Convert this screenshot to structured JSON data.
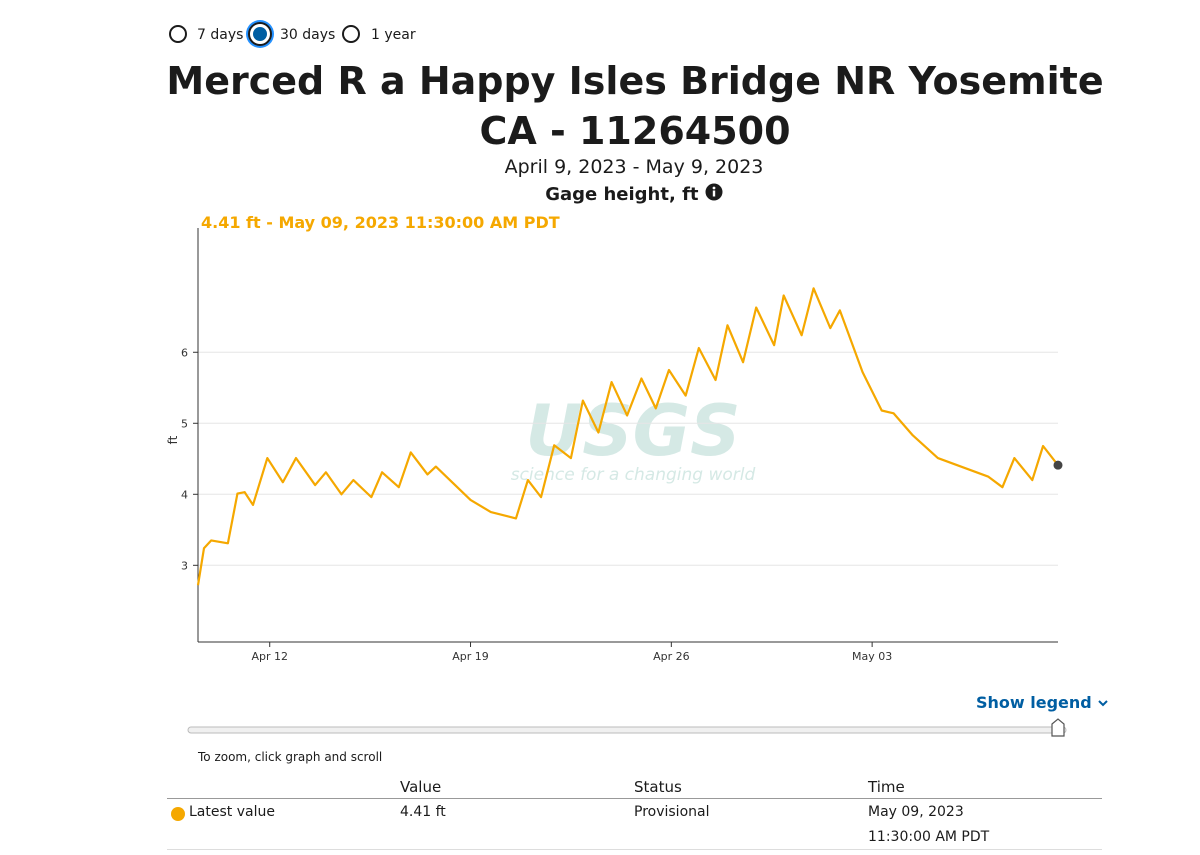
{
  "controls": {
    "periods": [
      "7 days",
      "30 days",
      "1 year"
    ],
    "selected": 1
  },
  "header": {
    "title": "Merced R a Happy Isles Bridge NR Yosemite CA - 11264500",
    "period": "April 9, 2023 - May 9, 2023",
    "parameter": "Gage height, ft"
  },
  "chart_data": {
    "type": "line",
    "annotation": "4.41 ft - May 09, 2023 11:30:00 AM PDT",
    "y_label": "ft",
    "watermark": {
      "logo": "USGS",
      "tagline": "science for a changing world"
    },
    "x": [
      "2023-04-09T12:00",
      "2023-04-09T17:00",
      "2023-04-09T23:00",
      "2023-04-10T13:00",
      "2023-04-10T21:00",
      "2023-04-11T03:00",
      "2023-04-11T10:00",
      "2023-04-11T22:00",
      "2023-04-12T11:00",
      "2023-04-12T22:00",
      "2023-04-13T14:00",
      "2023-04-13T23:00",
      "2023-04-14T12:00",
      "2023-04-14T22:00",
      "2023-04-15T13:00",
      "2023-04-15T22:00",
      "2023-04-16T12:00",
      "2023-04-16T22:00",
      "2023-04-17T12:00",
      "2023-04-17T19:00",
      "2023-04-19T00:00",
      "2023-04-19T17:00",
      "2023-04-20T14:00",
      "2023-04-21T00:00",
      "2023-04-21T11:00",
      "2023-04-21T22:00",
      "2023-04-22T12:00",
      "2023-04-22T22:00",
      "2023-04-23T11:00",
      "2023-04-23T22:00",
      "2023-04-24T11:00",
      "2023-04-24T23:00",
      "2023-04-25T11:00",
      "2023-04-25T22:00",
      "2023-04-26T12:00",
      "2023-04-26T23:00",
      "2023-04-27T13:00",
      "2023-04-27T23:00",
      "2023-04-28T12:00",
      "2023-04-28T23:00",
      "2023-04-29T14:00",
      "2023-04-29T22:00",
      "2023-04-30T13:00",
      "2023-04-30T23:00",
      "2023-05-01T13:00",
      "2023-05-01T21:00",
      "2023-05-02T16:00",
      "2023-05-03T08:00",
      "2023-05-03T18:00",
      "2023-05-04T10:00",
      "2023-05-05T07:00",
      "2023-05-06T04:00",
      "2023-05-07T01:00",
      "2023-05-07T13:00",
      "2023-05-07T23:00",
      "2023-05-08T14:00",
      "2023-05-08T23:00",
      "2023-05-09T11:30"
    ],
    "series": [
      {
        "color": "#f5a800",
        "values": [
          2.72,
          3.24,
          3.35,
          3.31,
          4.01,
          4.03,
          3.85,
          4.51,
          4.17,
          4.51,
          4.13,
          4.31,
          4.0,
          4.2,
          3.96,
          4.31,
          4.1,
          4.59,
          4.28,
          4.39,
          3.92,
          3.75,
          3.66,
          4.2,
          3.96,
          4.69,
          4.51,
          5.32,
          4.87,
          5.58,
          5.11,
          5.63,
          5.21,
          5.75,
          5.39,
          6.06,
          5.61,
          6.38,
          5.86,
          6.63,
          6.1,
          6.8,
          6.24,
          6.9,
          6.34,
          6.59,
          5.72,
          5.18,
          5.14,
          4.83,
          4.51,
          4.38,
          4.25,
          4.1,
          4.51,
          4.2,
          4.68,
          4.41
        ]
      }
    ],
    "xlim": [
      "2023-04-09T12:00",
      "2023-05-09T11:30"
    ],
    "xticks": [
      {
        "value": "2023-04-12T00:00",
        "label": "Apr 12"
      },
      {
        "value": "2023-04-19T00:00",
        "label": "Apr 19"
      },
      {
        "value": "2023-04-26T00:00",
        "label": "Apr 26"
      },
      {
        "value": "2023-05-03T00:00",
        "label": "May 03"
      }
    ],
    "ylim": [
      1.92,
      7.75
    ],
    "yticks": [
      3,
      4,
      5,
      6
    ],
    "grid": true
  },
  "legend_toggle": "Show legend",
  "zoom_hint": "To zoom, click graph and scroll",
  "table": {
    "columns": [
      "Value",
      "Status",
      "Time"
    ],
    "rows": [
      [
        "Latest value",
        "4.41 ft",
        "Provisional",
        [
          "May 09, 2023",
          "11:30:00 AM PDT"
        ]
      ]
    ]
  }
}
